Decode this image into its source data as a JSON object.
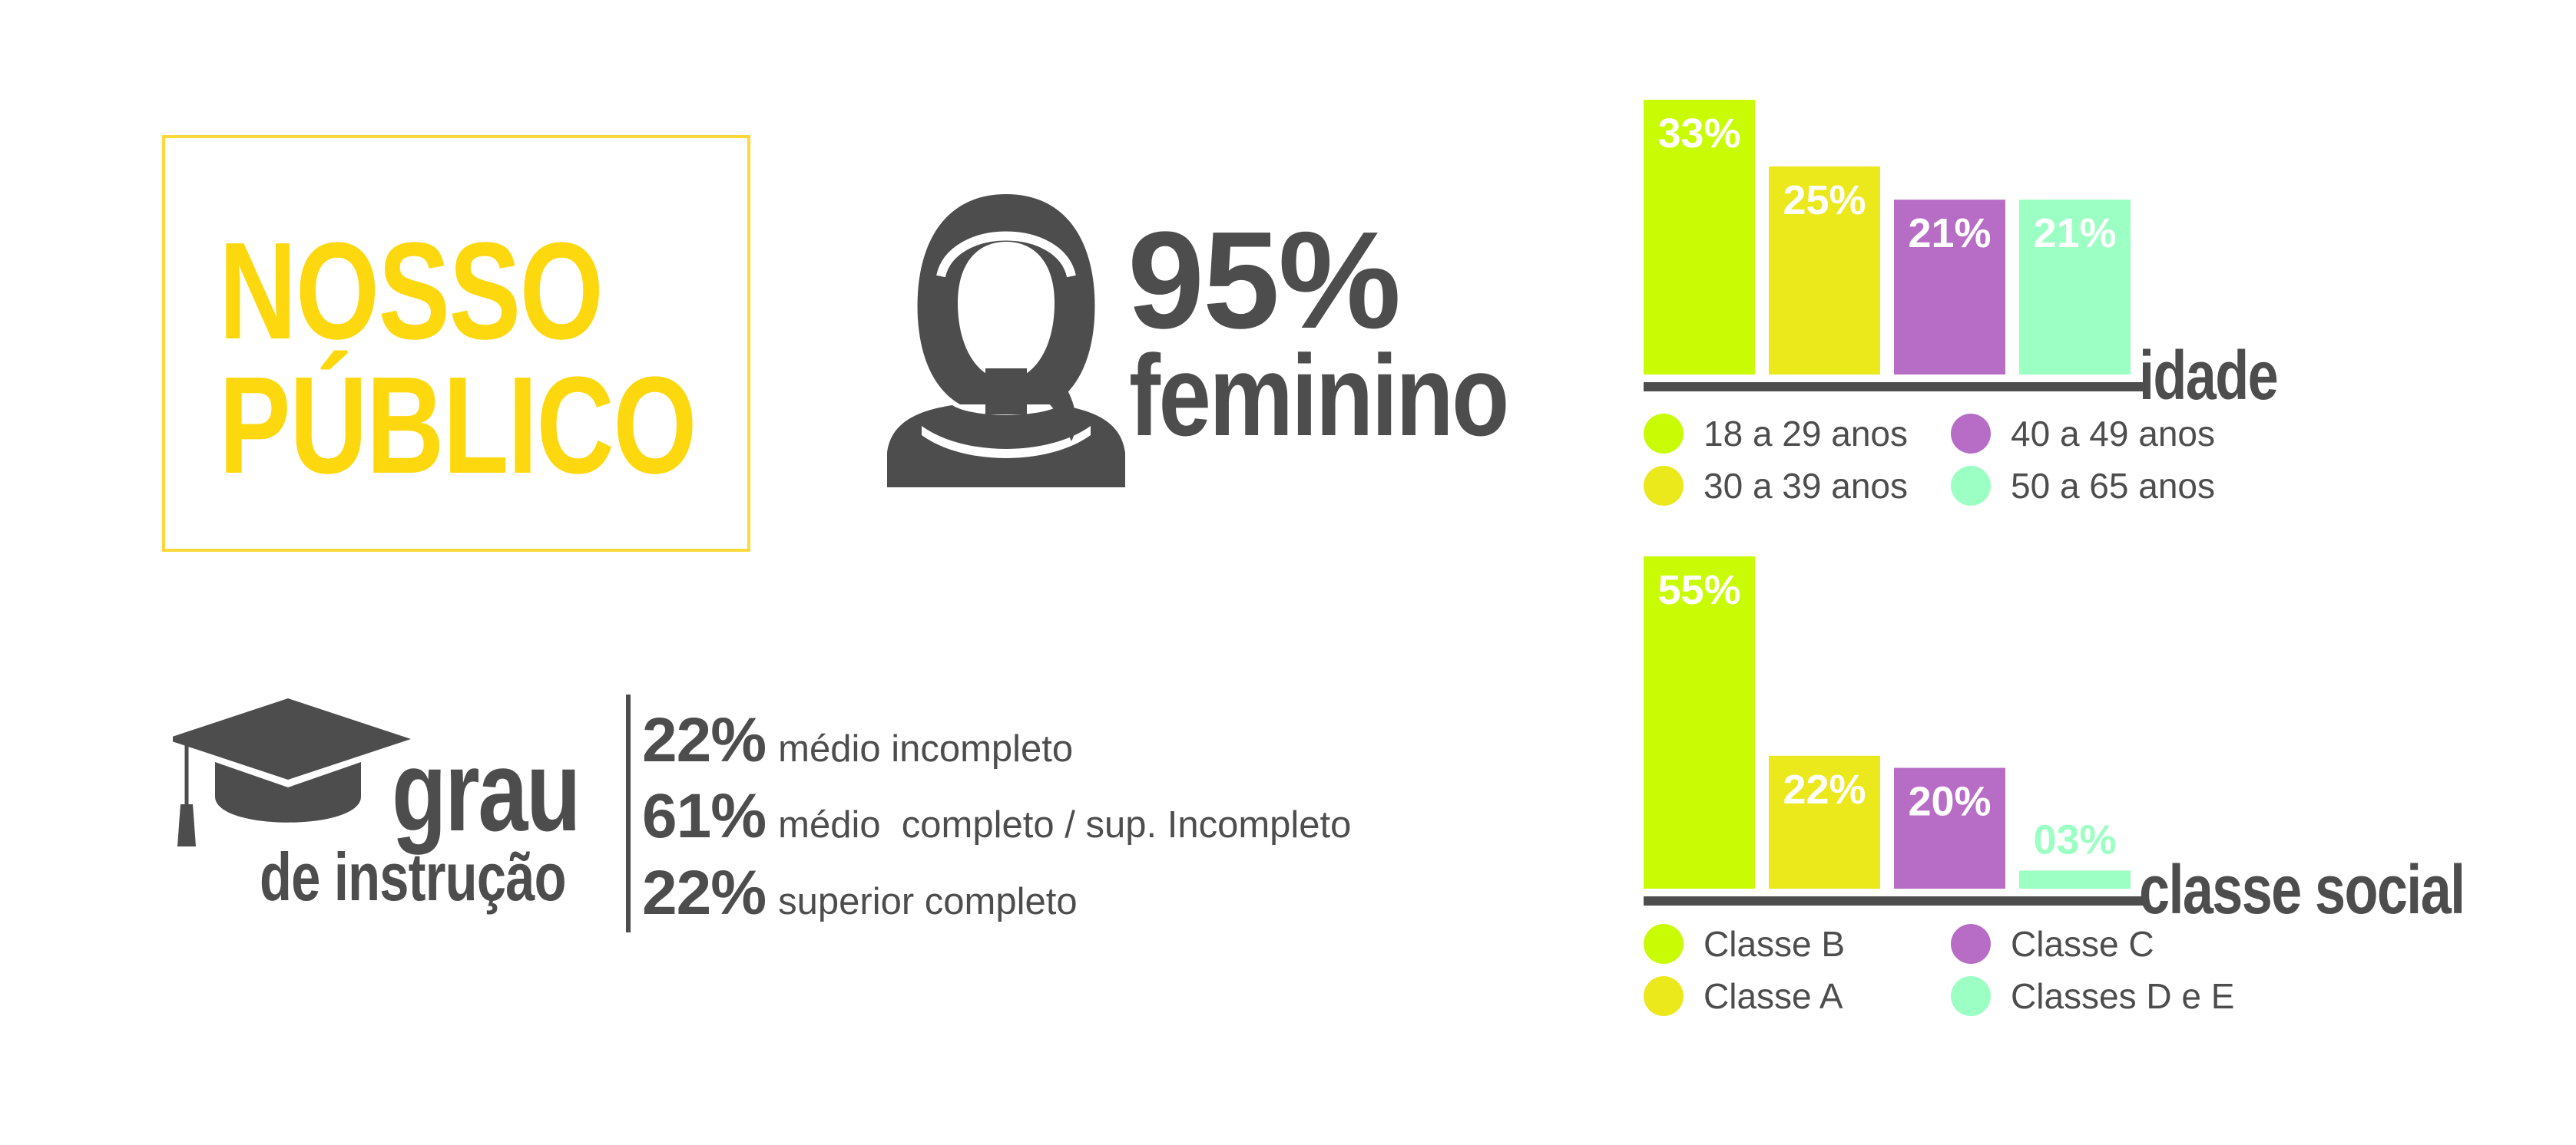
{
  "title": {
    "line1": "NOSSO",
    "line2": "PÚBLICO"
  },
  "female": {
    "percent": "95%",
    "label": "feminino",
    "icon": "woman-silhouette-icon"
  },
  "education": {
    "icon": "graduation-cap-icon",
    "title_main": "grau",
    "title_sub": "de instrução",
    "rows": [
      {
        "pct": "22%",
        "text": "médio incompleto"
      },
      {
        "pct": "61%",
        "text": "médio  completo / sup. Incompleto"
      },
      {
        "pct": "22%",
        "text": "superior completo"
      }
    ]
  },
  "colors": {
    "title": "#fdd80e",
    "title_border": "#fcd83b",
    "dark": "#4d4d4d",
    "lime": "#c8fb04",
    "yellow": "#ebe81c",
    "purple": "#b76dc6",
    "mint": "#9cffc3"
  },
  "chart_data": [
    {
      "type": "bar",
      "title": "idade",
      "categories": [
        "18 a 29 anos",
        "30 a 39 anos",
        "40 a 49 anos",
        "50 a 65 anos"
      ],
      "values": [
        33,
        25,
        21,
        21
      ],
      "data_labels": [
        "33%",
        "25%",
        "21%",
        "21%"
      ],
      "colors": [
        "#c8fb04",
        "#ebe81c",
        "#b76dc6",
        "#9cffc3"
      ],
      "ylim": [
        0,
        33
      ],
      "legend": [
        {
          "label": "18 a 29 anos",
          "color": "#c8fb04"
        },
        {
          "label": "40 a 49 anos",
          "color": "#b76dc6"
        },
        {
          "label": "30 a 39 anos",
          "color": "#ebe81c"
        },
        {
          "label": "50 a 65 anos",
          "color": "#9cffc3"
        }
      ]
    },
    {
      "type": "bar",
      "title": "classe social",
      "categories": [
        "Classe B",
        "Classe A",
        "Classe C",
        "Classes D e E"
      ],
      "values": [
        55,
        22,
        20,
        3
      ],
      "data_labels": [
        "55%",
        "22%",
        "20%",
        "03%"
      ],
      "colors": [
        "#c8fb04",
        "#ebe81c",
        "#b76dc6",
        "#9cffc3"
      ],
      "ylim": [
        0,
        55
      ],
      "legend": [
        {
          "label": "Classe B",
          "color": "#c8fb04"
        },
        {
          "label": "Classe C",
          "color": "#b76dc6"
        },
        {
          "label": "Classe A",
          "color": "#ebe81c"
        },
        {
          "label": "Classes D e E",
          "color": "#9cffc3"
        }
      ]
    }
  ]
}
